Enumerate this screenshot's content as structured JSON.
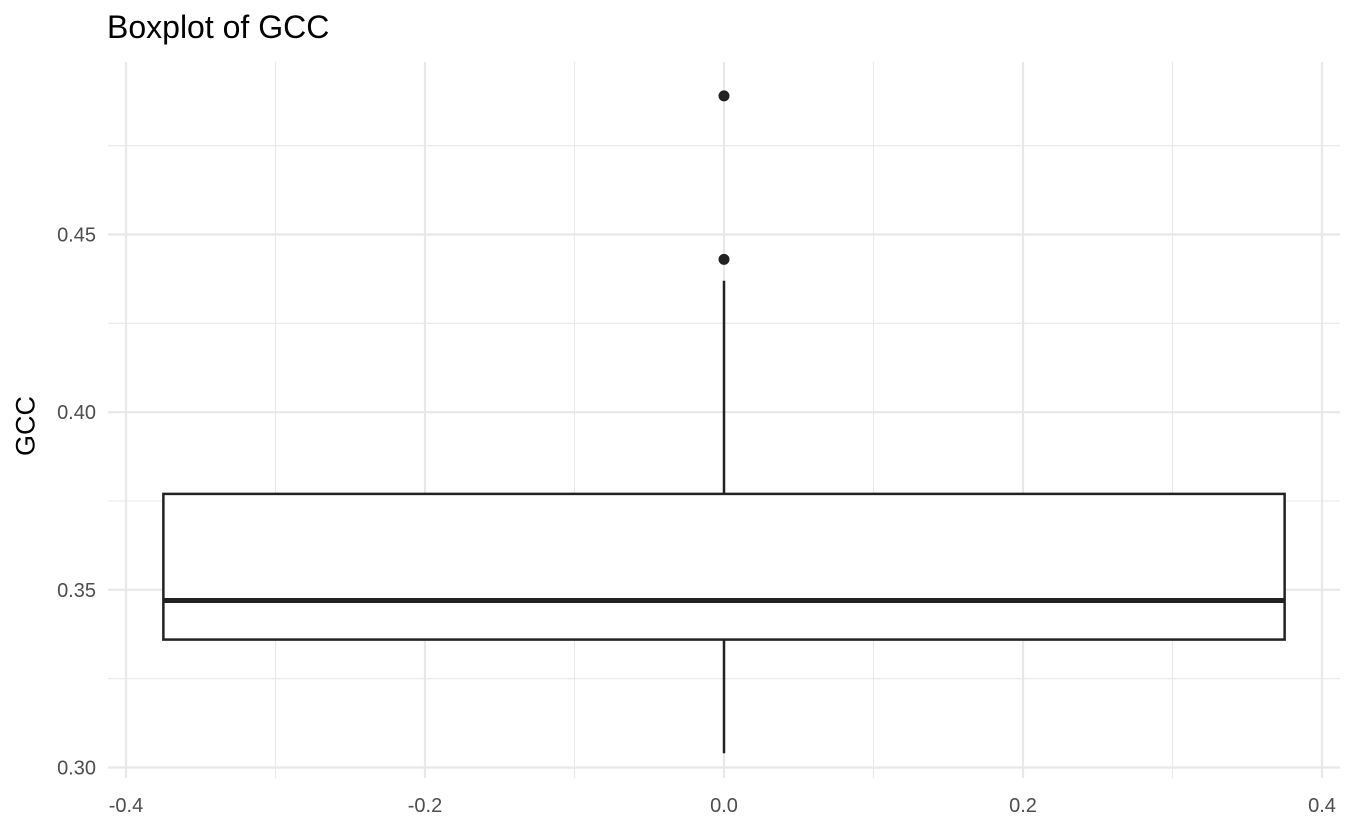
{
  "chart_data": {
    "type": "boxplot",
    "title": "Boxplot of GCC",
    "xlabel": "",
    "ylabel": "GCC",
    "xlim": [
      -0.4,
      0.4
    ],
    "ylim": [
      0.3,
      0.49
    ],
    "x_ticks": [
      -0.4,
      -0.2,
      0.0,
      0.2,
      0.4
    ],
    "x_tick_labels": [
      "-0.4",
      "-0.2",
      "0.0",
      "0.2",
      "0.4"
    ],
    "y_ticks": [
      0.3,
      0.35,
      0.4,
      0.45
    ],
    "y_tick_labels": [
      "0.30",
      "0.35",
      "0.40",
      "0.45"
    ],
    "grid": true,
    "box": {
      "x_center": 0.0,
      "x_left": -0.375,
      "x_right": 0.375,
      "whisker_low": 0.304,
      "q1": 0.336,
      "median": 0.347,
      "q3": 0.377,
      "whisker_high": 0.437
    },
    "outliers": [
      0.443,
      0.489
    ],
    "colors": {
      "stroke": "#222222",
      "grid": "#e8e8e8",
      "fill": "#ffffff"
    }
  }
}
